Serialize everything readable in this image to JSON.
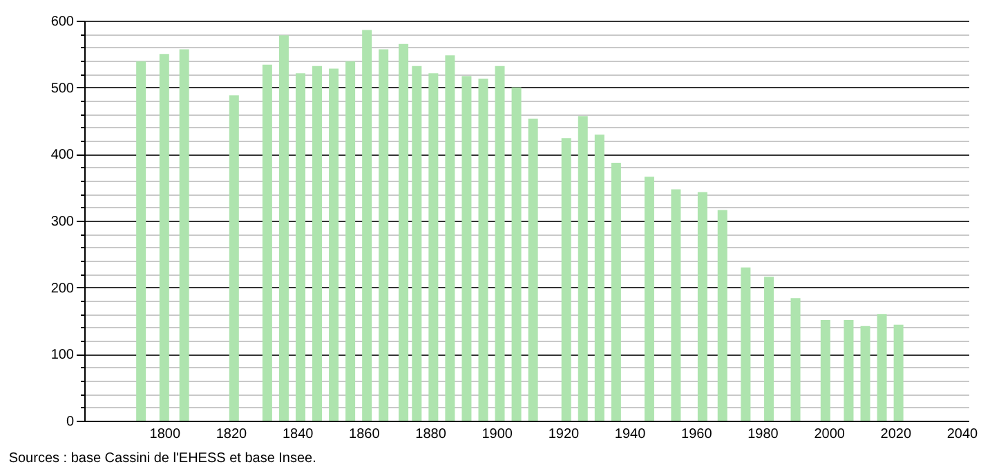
{
  "chart_data": {
    "type": "bar",
    "x": [
      1793,
      1800,
      1806,
      1821,
      1831,
      1836,
      1841,
      1846,
      1851,
      1856,
      1861,
      1866,
      1872,
      1876,
      1881,
      1886,
      1891,
      1896,
      1901,
      1906,
      1911,
      1921,
      1926,
      1931,
      1936,
      1946,
      1954,
      1962,
      1968,
      1975,
      1982,
      1990,
      1999,
      2006,
      2011,
      2016,
      2021
    ],
    "values": [
      539,
      550,
      557,
      488,
      534,
      578,
      521,
      532,
      528,
      539,
      586,
      557,
      565,
      532,
      521,
      548,
      517,
      513,
      532,
      500,
      453,
      424,
      457,
      429,
      387,
      366,
      347,
      343,
      316,
      230,
      216,
      184,
      151,
      151,
      142,
      160,
      144
    ],
    "color": "#aee4ae",
    "xlim": [
      1778,
      2040
    ],
    "xticks": [
      1800,
      1820,
      1840,
      1860,
      1880,
      1900,
      1920,
      1940,
      1960,
      1980,
      2000,
      2020,
      2040
    ],
    "ylim": [
      0,
      600
    ],
    "yticks": [
      0,
      {
        "value": 20,
        "label": null
      },
      {
        "value": 40,
        "label": null
      },
      {
        "value": 60,
        "label": null
      },
      {
        "value": 80,
        "label": null
      },
      100,
      {
        "value": 120,
        "label": null
      },
      {
        "value": 140,
        "label": null
      },
      {
        "value": 160,
        "label": null
      },
      {
        "value": 180,
        "label": null
      },
      200,
      {
        "value": 220,
        "label": null
      },
      {
        "value": 240,
        "label": null
      },
      {
        "value": 260,
        "label": null
      },
      {
        "value": 280,
        "label": null
      },
      300,
      {
        "value": 320,
        "label": null
      },
      {
        "value": 340,
        "label": null
      },
      {
        "value": 360,
        "label": null
      },
      {
        "value": 380,
        "label": null
      },
      400,
      {
        "value": 420,
        "label": null
      },
      {
        "value": 440,
        "label": null
      },
      {
        "value": 460,
        "label": null
      },
      {
        "value": 480,
        "label": null
      },
      500,
      {
        "value": 520,
        "label": null
      },
      {
        "value": 540,
        "label": null
      },
      {
        "value": 560,
        "label": null
      },
      {
        "value": 580,
        "label": null
      },
      600
    ],
    "grid": "y",
    "annotations": [
      "Sources : base Cassini de l'EHESS et base Insee."
    ]
  }
}
